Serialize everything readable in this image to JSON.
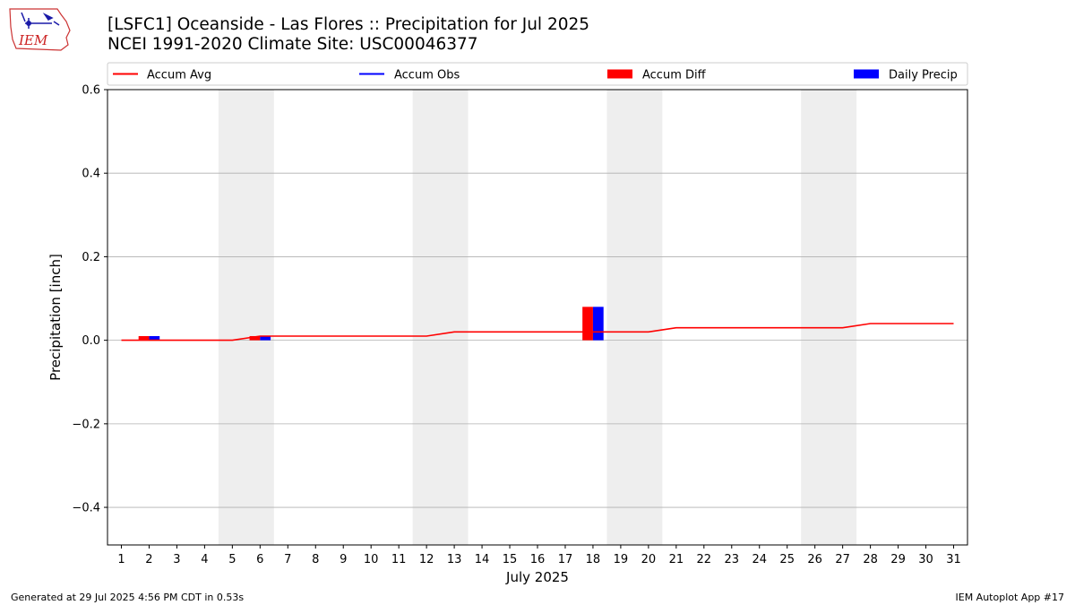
{
  "logo": {
    "text": "IEM"
  },
  "title": {
    "line1": "[LSFC1] Oceanside - Las Flores :: Precipitation for Jul 2025",
    "line2": "NCEI 1991-2020 Climate Site: USC00046377"
  },
  "footer": {
    "left": "Generated at 29 Jul 2025 4:56 PM CDT in 0.53s",
    "right": "IEM Autoplot App #17"
  },
  "chart_data": {
    "type": "bar",
    "xlabel": "July 2025",
    "ylabel": "Precipitation [inch]",
    "x": [
      1,
      2,
      3,
      4,
      5,
      6,
      7,
      8,
      9,
      10,
      11,
      12,
      13,
      14,
      15,
      16,
      17,
      18,
      19,
      20,
      21,
      22,
      23,
      24,
      25,
      26,
      27,
      28,
      29,
      30,
      31
    ],
    "ylim": [
      -0.49,
      0.6
    ],
    "yticks": [
      -0.4,
      -0.2,
      0.0,
      0.2,
      0.4,
      0.6
    ],
    "ytick_labels": [
      "−0.4",
      "−0.2",
      "0.0",
      "0.2",
      "0.4",
      "0.6"
    ],
    "grid": "horizontal",
    "weekend_shading": [
      [
        5,
        6
      ],
      [
        12,
        13
      ],
      [
        19,
        20
      ],
      [
        26,
        27
      ]
    ],
    "legend": {
      "placement": "top",
      "entries": [
        {
          "label": "Accum Avg",
          "kind": "line",
          "color": "#ff0000"
        },
        {
          "label": "Accum Obs",
          "kind": "line",
          "color": "#0000ff"
        },
        {
          "label": "Accum Diff",
          "kind": "bar",
          "color": "#ff0000"
        },
        {
          "label": "Daily Precip",
          "kind": "bar",
          "color": "#0000ff"
        }
      ]
    },
    "series": [
      {
        "name": "Accum Avg",
        "kind": "line",
        "color": "#ff0000",
        "values": [
          0,
          0,
          0,
          0,
          0,
          0.01,
          0.01,
          0.01,
          0.01,
          0.01,
          0.01,
          0.01,
          0.02,
          0.02,
          0.02,
          0.02,
          0.02,
          0.02,
          0.02,
          0.02,
          0.03,
          0.03,
          0.03,
          0.03,
          0.03,
          0.03,
          0.03,
          0.04,
          0.04,
          0.04,
          0.04
        ]
      },
      {
        "name": "Accum Diff",
        "kind": "bar",
        "color": "#ff0000",
        "values": [
          0,
          0.01,
          0,
          0,
          0,
          0.01,
          0,
          0,
          0,
          0,
          0,
          0,
          0,
          0,
          0,
          0,
          0,
          0.08,
          0,
          0,
          0,
          0,
          0,
          0,
          0,
          0,
          0,
          0,
          0,
          0,
          0
        ]
      },
      {
        "name": "Daily Precip",
        "kind": "bar",
        "color": "#0000ff",
        "values": [
          0,
          0.01,
          0,
          0,
          0,
          0.01,
          0,
          0,
          0,
          0,
          0,
          0,
          0,
          0,
          0,
          0,
          0,
          0.08,
          0,
          0,
          0,
          0,
          0,
          0,
          0,
          0,
          0,
          0,
          0,
          0,
          0
        ]
      }
    ]
  }
}
